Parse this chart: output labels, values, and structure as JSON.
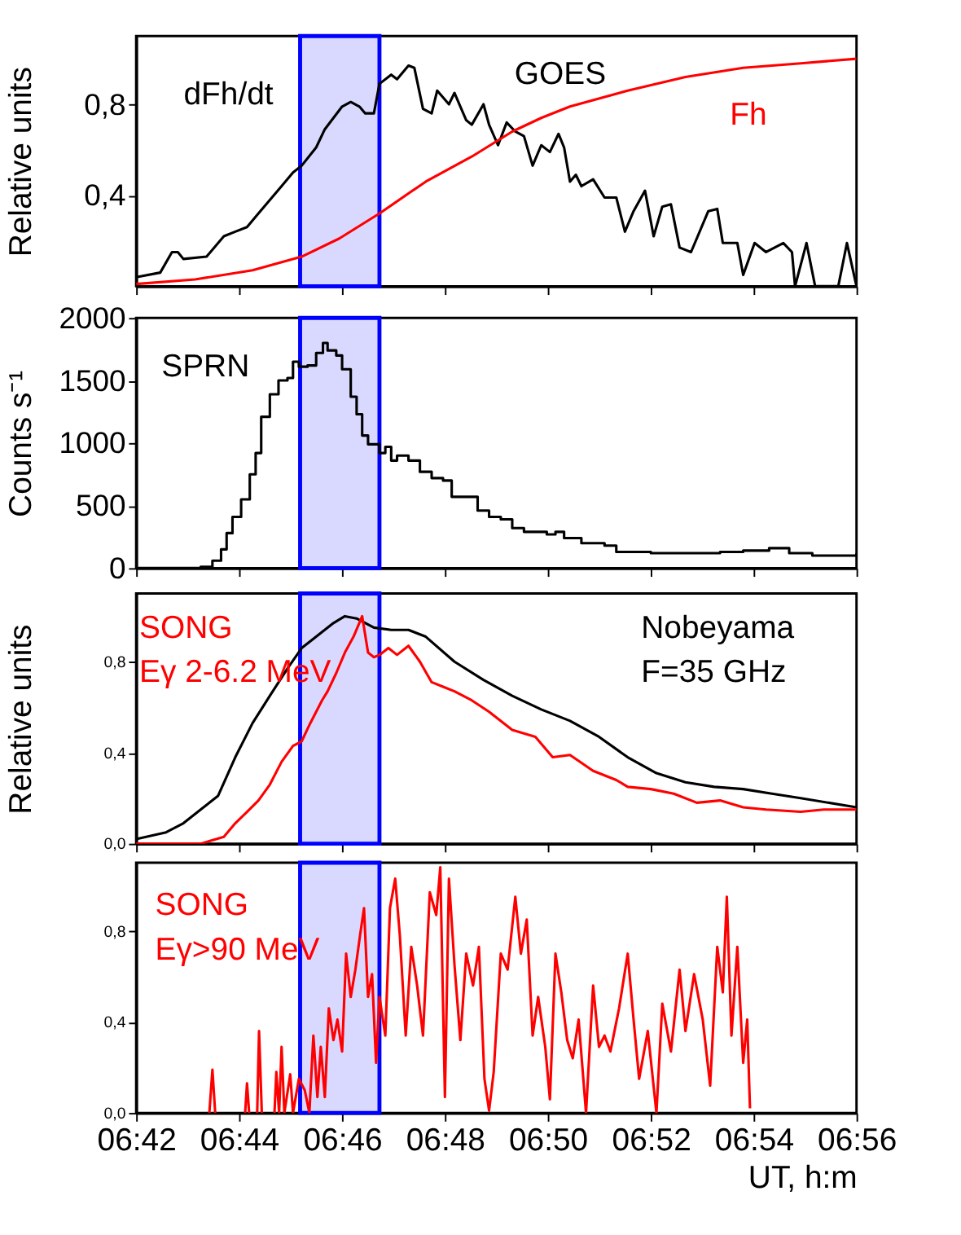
{
  "chart_data": [
    {
      "type": "line",
      "ylabel": "Relative units",
      "annotations": [
        "GOES"
      ],
      "tick_labels": "y",
      "xlim": [
        6.7,
        6.9333
      ],
      "xticks": [
        {
          "value": 6.7,
          "label": null
        },
        {
          "value": 6.7333,
          "label": null
        },
        {
          "value": 6.7667,
          "label": null
        },
        {
          "value": 6.8,
          "label": null
        },
        {
          "value": 6.8333,
          "label": null
        },
        {
          "value": 6.8667,
          "label": null
        },
        {
          "value": 6.9,
          "label": null
        },
        {
          "value": 6.9333,
          "label": null
        }
      ],
      "ylim": [
        0,
        1.1
      ],
      "yticks": [
        {
          "value": 0.4,
          "label": "0,4"
        },
        {
          "value": 0.8,
          "label": "0,8"
        }
      ],
      "bands": [
        {
          "axis": "x",
          "from": 6.7531,
          "to": 6.7788,
          "color": "#0000ff"
        }
      ],
      "series": [
        {
          "name": "dFh/dt",
          "color": "#000000",
          "x": [
            6.7,
            6.7078,
            6.7116,
            6.7135,
            6.7153,
            6.7228,
            6.7284,
            6.7321,
            6.7359,
            6.7396,
            6.7471,
            6.7508,
            6.7536,
            6.7583,
            6.7611,
            6.7639,
            6.7667,
            6.7695,
            6.7723,
            6.7742,
            6.777,
            6.7788,
            6.7826,
            6.7845,
            6.7882,
            6.7901,
            6.7929,
            6.7957,
            6.7975,
            6.8013,
            6.8031,
            6.8069,
            6.8087,
            6.8125,
            6.8143,
            6.8172,
            6.82,
            6.8228,
            6.8256,
            6.8284,
            6.8312,
            6.834,
            6.8368,
            6.8386,
            6.8405,
            6.8424,
            6.8442,
            6.848,
            6.8517,
            6.8555,
            6.8583,
            6.8611,
            6.8648,
            6.8676,
            6.8704,
            6.8732,
            6.876,
            6.8797,
            6.8853,
            6.8882,
            6.89,
            6.8947,
            6.8966,
            6.9003,
            6.904,
            6.9096,
            6.9124,
            6.9134,
            6.9171,
            6.9199,
            6.9274,
            6.9302,
            6.9333
          ],
          "values": [
            0.04,
            0.06,
            0.15,
            0.15,
            0.12,
            0.13,
            0.22,
            0.24,
            0.26,
            0.32,
            0.44,
            0.5,
            0.53,
            0.61,
            0.69,
            0.74,
            0.79,
            0.81,
            0.79,
            0.76,
            0.76,
            0.89,
            0.93,
            0.91,
            0.97,
            0.96,
            0.78,
            0.76,
            0.86,
            0.8,
            0.85,
            0.73,
            0.71,
            0.8,
            0.71,
            0.62,
            0.72,
            0.68,
            0.66,
            0.53,
            0.62,
            0.59,
            0.67,
            0.61,
            0.46,
            0.49,
            0.44,
            0.47,
            0.39,
            0.39,
            0.24,
            0.33,
            0.42,
            0.22,
            0.35,
            0.36,
            0.17,
            0.15,
            0.33,
            0.34,
            0.19,
            0.19,
            0.05,
            0.19,
            0.15,
            0.19,
            0.15,
            0,
            0.19,
            0,
            0,
            0.19,
            0
          ]
        },
        {
          "name": "Fh",
          "color": "#ff0000",
          "x": [
            6.7,
            6.7191,
            6.7377,
            6.7536,
            6.7658,
            6.7788,
            6.7938,
            6.8087,
            6.8218,
            6.8312,
            6.8405,
            6.8592,
            6.8779,
            6.8966,
            6.9153,
            6.9333
          ],
          "values": [
            0.01,
            0.03,
            0.07,
            0.13,
            0.21,
            0.32,
            0.46,
            0.57,
            0.68,
            0.74,
            0.79,
            0.86,
            0.92,
            0.96,
            0.98,
            1.0
          ]
        }
      ]
    },
    {
      "type": "step",
      "ylabel": "Counts s⁻¹",
      "tick_labels": "y",
      "xlim": [
        6.7,
        6.9333
      ],
      "xticks": [
        {
          "value": 6.7,
          "label": null
        },
        {
          "value": 6.7333,
          "label": null
        },
        {
          "value": 6.7667,
          "label": null
        },
        {
          "value": 6.8,
          "label": null
        },
        {
          "value": 6.8333,
          "label": null
        },
        {
          "value": 6.8667,
          "label": null
        },
        {
          "value": 6.9,
          "label": null
        },
        {
          "value": 6.9333,
          "label": null
        }
      ],
      "ylim": [
        0,
        2000
      ],
      "yticks": [
        0,
        500,
        1000,
        1500,
        2000
      ],
      "bands": [
        {
          "axis": "x",
          "from": 6.7531,
          "to": 6.7788,
          "color": "#0000ff"
        }
      ],
      "series": [
        {
          "name": "SPRN",
          "color": "#000000",
          "x": [
            6.7,
            6.7135,
            6.7209,
            6.7247,
            6.7275,
            6.7293,
            6.7312,
            6.734,
            6.7368,
            6.7387,
            6.7405,
            6.7433,
            6.7461,
            6.749,
            6.7508,
            6.7527,
            6.7555,
            6.7583,
            6.7605,
            6.762,
            6.7648,
            6.7667,
            6.7695,
            6.7714,
            6.7732,
            6.7751,
            6.7788,
            6.7807,
            6.7826,
            6.7845,
            6.7882,
            6.7919,
            6.7957,
            6.7994,
            6.8022,
            6.8059,
            6.8106,
            6.8143,
            6.8181,
            6.8218,
            6.8256,
            6.833,
            6.8358,
            6.8386,
            6.8442,
            6.8517,
            6.8555,
            6.8592,
            6.8667,
            6.8779,
            6.8891,
            6.8966,
            6.905,
            6.9115,
            6.919,
            6.9333
          ],
          "values": [
            0,
            0,
            10,
            60,
            150,
            280,
            410,
            550,
            750,
            920,
            1210,
            1390,
            1500,
            1520,
            1650,
            1610,
            1620,
            1720,
            1800,
            1740,
            1700,
            1590,
            1370,
            1230,
            1060,
            990,
            920,
            970,
            860,
            900,
            860,
            770,
            720,
            700,
            570,
            570,
            460,
            410,
            390,
            320,
            290,
            270,
            290,
            240,
            200,
            180,
            130,
            130,
            120,
            120,
            130,
            140,
            160,
            120,
            100,
            120
          ]
        }
      ]
    },
    {
      "type": "line",
      "ylabel": "Relative units",
      "tick_labels": "y",
      "xlim": [
        6.7,
        6.9333
      ],
      "xticks": [
        {
          "value": 6.7,
          "label": null
        },
        {
          "value": 6.7333,
          "label": null
        },
        {
          "value": 6.7667,
          "label": null
        },
        {
          "value": 6.8,
          "label": null
        },
        {
          "value": 6.8333,
          "label": null
        },
        {
          "value": 6.8667,
          "label": null
        },
        {
          "value": 6.9,
          "label": null
        },
        {
          "value": 6.9333,
          "label": null
        }
      ],
      "ylim": [
        0,
        1.1
      ],
      "yticks": [
        {
          "value": 0,
          "label": "0,0"
        },
        {
          "value": 0.4,
          "label": "0,4"
        },
        {
          "value": 0.8,
          "label": "0,8"
        }
      ],
      "bands": [
        {
          "axis": "x",
          "from": 6.7531,
          "to": 6.7788,
          "color": "#0000ff"
        }
      ],
      "series": [
        {
          "name": "Nobeyama F=35 GHz",
          "color": "#000000",
          "x": [
            6.7,
            6.7097,
            6.7153,
            6.7209,
            6.7265,
            6.7321,
            6.7377,
            6.7433,
            6.749,
            6.7536,
            6.7583,
            6.7639,
            6.7676,
            6.7714,
            6.777,
            6.7826,
            6.7882,
            6.7938,
            6.8031,
            6.8125,
            6.8218,
            6.8312,
            6.8405,
            6.8499,
            6.8592,
            6.8685,
            6.8779,
            6.8872,
            6.8966,
            6.9059,
            6.9152,
            6.9333
          ],
          "values": [
            0.02,
            0.05,
            0.09,
            0.15,
            0.21,
            0.38,
            0.53,
            0.65,
            0.77,
            0.86,
            0.91,
            0.97,
            1.0,
            0.99,
            0.95,
            0.94,
            0.94,
            0.91,
            0.8,
            0.72,
            0.65,
            0.59,
            0.54,
            0.47,
            0.38,
            0.31,
            0.27,
            0.25,
            0.24,
            0.22,
            0.2,
            0.16
          ]
        },
        {
          "name": "SONG Eγ 2-6.2  MeV",
          "color": "#ff0000",
          "x": [
            6.7,
            6.7209,
            6.7284,
            6.7321,
            6.7359,
            6.7396,
            6.7433,
            6.7471,
            6.7508,
            6.7536,
            6.7564,
            6.7602,
            6.762,
            6.7648,
            6.7676,
            6.7704,
            6.7732,
            6.7751,
            6.777,
            6.7788,
            6.7817,
            6.7845,
            6.7882,
            6.7919,
            6.7957,
            6.7994,
            6.8031,
            6.8087,
            6.8143,
            6.8218,
            6.8293,
            6.8349,
            6.8405,
            6.848,
            6.8555,
            6.8592,
            6.8667,
            6.8741,
            6.8816,
            6.8891,
            6.8966,
            6.904,
            6.9152,
            6.9227,
            6.9333
          ],
          "values": [
            0,
            0,
            0.03,
            0.09,
            0.14,
            0.19,
            0.26,
            0.36,
            0.43,
            0.45,
            0.53,
            0.63,
            0.67,
            0.75,
            0.84,
            0.91,
            1.0,
            0.84,
            0.82,
            0.83,
            0.86,
            0.83,
            0.87,
            0.8,
            0.71,
            0.69,
            0.67,
            0.63,
            0.58,
            0.5,
            0.47,
            0.38,
            0.39,
            0.32,
            0.28,
            0.25,
            0.24,
            0.22,
            0.18,
            0.19,
            0.16,
            0.15,
            0.14,
            0.15,
            0.15
          ]
        }
      ]
    },
    {
      "type": "line",
      "xlabel": "UT, h:m",
      "xlim": [
        6.7,
        6.9333
      ],
      "xticks": [
        {
          "value": 6.7,
          "label": "06:42"
        },
        {
          "value": 6.7333,
          "label": "06:44"
        },
        {
          "value": 6.7667,
          "label": "06:46"
        },
        {
          "value": 6.8,
          "label": "06:48"
        },
        {
          "value": 6.8333,
          "label": "06:50"
        },
        {
          "value": 6.8667,
          "label": "06:52"
        },
        {
          "value": 6.9,
          "label": "06:54"
        },
        {
          "value": 6.9333,
          "label": "06:56"
        }
      ],
      "ylim": [
        0,
        1.1
      ],
      "yticks": [
        {
          "value": 0,
          "label": "0,0"
        },
        {
          "value": 0.4,
          "label": "0,4"
        },
        {
          "value": 0.8,
          "label": "0,8"
        }
      ],
      "bands": [
        {
          "axis": "x",
          "from": 6.7531,
          "to": 6.7788,
          "color": "#0000ff"
        }
      ],
      "series": [
        {
          "name": "SONG Eγ>90  MeV",
          "color": "#ff0000",
          "x": [
            6.7237,
            6.7247,
            6.7256,
            6.73,
            6.7353,
            6.7359,
            6.7366,
            6.738,
            6.7392,
            6.7398,
            6.7407,
            6.743,
            6.7448,
            6.7454,
            6.7463,
            6.7471,
            6.748,
            6.7499,
            6.7508,
            6.7527,
            6.7546,
            6.7561,
            6.7574,
            6.7587,
            6.7598,
            6.7611,
            6.7624,
            6.7639,
            6.7652,
            6.7667,
            6.768,
            6.7695,
            6.771,
            6.7725,
            6.7738,
            6.7751,
            6.7764,
            6.7777,
            6.7788,
            6.7807,
            6.7822,
            6.7839,
            6.7854,
            6.7873,
            6.7891,
            6.791,
            6.7929,
            6.7951,
            6.7972,
            6.7985,
            6.8,
            6.8013,
            6.8031,
            6.805,
            6.8069,
            6.8091,
            6.811,
            6.8128,
            6.8143,
            6.8158,
            6.8181,
            6.8203,
            6.8228,
            6.8246,
            6.8265,
            6.8284,
            6.8302,
            6.8325,
            6.834,
            6.8358,
            6.8377,
            6.8396,
            6.8414,
            6.8433,
            6.8457,
            6.848,
            6.8499,
            6.8517,
            6.8536,
            6.8564,
            6.8592,
            6.8611,
            6.8629,
            6.8657,
            6.8685,
            6.8704,
            6.8732,
            6.876,
            6.8779,
            6.8807,
            6.8835,
            6.8859,
            6.8882,
            6.89,
            6.8913,
            6.8928,
            6.8947,
            6.8966,
            6.8979,
            6.8988
          ],
          "values": [
            0,
            0.19,
            0,
            null,
            0,
            0.13,
            0,
            null,
            0,
            0.36,
            0,
            null,
            0,
            0.18,
            0,
            0.29,
            0,
            0.17,
            0,
            0.15,
            0.1,
            0,
            0.34,
            0.07,
            0.29,
            0.07,
            0.46,
            0.32,
            0.41,
            0.27,
            0.7,
            0.51,
            0.63,
            0.78,
            0.9,
            0.51,
            0.61,
            0.22,
            0.51,
            0.34,
            0.9,
            1.03,
            0.78,
            0.34,
            0.73,
            0.56,
            0.34,
            0.97,
            0.87,
            1.08,
            0.07,
            1.03,
            0.65,
            0.32,
            0.7,
            0.56,
            0.73,
            0.15,
            0.01,
            0.18,
            0.7,
            0.63,
            0.95,
            0.7,
            0.85,
            0.34,
            0.51,
            0.29,
            0.06,
            0.7,
            0.53,
            0.32,
            0.24,
            0.41,
            0,
            0.56,
            0.29,
            0.34,
            0.27,
            0.46,
            0.7,
            0.41,
            0.15,
            0.36,
            0,
            0.48,
            0.27,
            0.63,
            0.36,
            0.61,
            0.41,
            0.12,
            0.73,
            0.53,
            0.95,
            0.34,
            0.73,
            0.22,
            0.41,
            0.02
          ]
        }
      ]
    }
  ]
}
